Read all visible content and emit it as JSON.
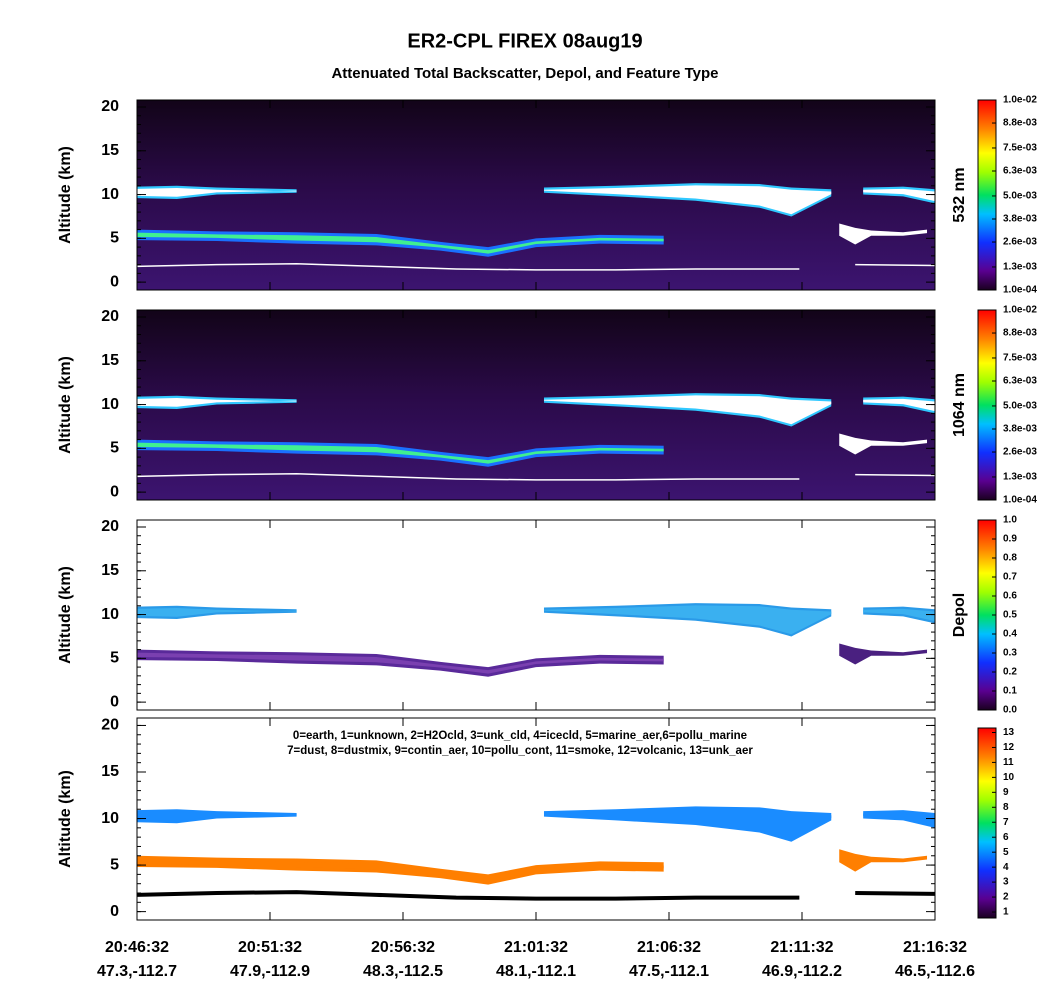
{
  "title": "ER2-CPL FIREX 08aug19",
  "subtitle": "Attenuated Total Backscatter, Depol, and Feature Type",
  "xtick_times": [
    "20:46:32",
    "20:51:32",
    "20:56:32",
    "21:01:32",
    "21:06:32",
    "21:11:32",
    "21:16:32"
  ],
  "xtick_coords": [
    "47.3,-112.7",
    "47.9,-112.9",
    "48.3,-112.5",
    "48.1,-112.1",
    "47.5,-112.1",
    "46.9,-112.2",
    "46.5,-112.6"
  ],
  "chart_data": [
    {
      "type": "backscatter",
      "ylabel": "Altitude (km)",
      "ylim": [
        -0.9,
        20.8
      ],
      "yticks": [
        0,
        5,
        10,
        15,
        20
      ],
      "colorbar_label": "532 nm",
      "clim": [
        0.0001,
        0.01
      ],
      "cticks": [
        {
          "value": 0.0001,
          "label": "1.0e-04"
        },
        {
          "value": 0.0013,
          "label": "1.3e-03"
        },
        {
          "value": 0.0026,
          "label": "2.6e-03"
        },
        {
          "value": 0.0038,
          "label": "3.8e-03"
        },
        {
          "value": 0.005,
          "label": "5.0e-03"
        },
        {
          "value": 0.0063,
          "label": "6.3e-03"
        },
        {
          "value": 0.0075,
          "label": "7.5e-03"
        },
        {
          "value": 0.0088,
          "label": "8.8e-03"
        },
        {
          "value": 0.01,
          "label": "1.0e-02"
        }
      ]
    },
    {
      "type": "backscatter",
      "ylabel": "Altitude (km)",
      "ylim": [
        -0.9,
        20.8
      ],
      "yticks": [
        0,
        5,
        10,
        15,
        20
      ],
      "colorbar_label": "1064 nm",
      "clim": [
        0.0001,
        0.01
      ],
      "cticks": [
        {
          "value": 0.0001,
          "label": "1.0e-04"
        },
        {
          "value": 0.0013,
          "label": "1.3e-03"
        },
        {
          "value": 0.0026,
          "label": "2.6e-03"
        },
        {
          "value": 0.0038,
          "label": "3.8e-03"
        },
        {
          "value": 0.005,
          "label": "5.0e-03"
        },
        {
          "value": 0.0063,
          "label": "6.3e-03"
        },
        {
          "value": 0.0075,
          "label": "7.5e-03"
        },
        {
          "value": 0.0088,
          "label": "8.8e-03"
        },
        {
          "value": 0.01,
          "label": "1.0e-02"
        }
      ]
    },
    {
      "type": "depol",
      "ylabel": "Altitude (km)",
      "ylim": [
        -0.9,
        20.8
      ],
      "yticks": [
        0,
        5,
        10,
        15,
        20
      ],
      "colorbar_label": "Depol",
      "clim": [
        0,
        1
      ],
      "cticks": [
        {
          "value": 0,
          "label": "0.0"
        },
        0.1,
        0.2,
        0.3,
        0.4,
        0.5,
        0.6,
        0.7,
        0.8,
        0.9,
        {
          "value": 1,
          "label": "1.0"
        }
      ]
    },
    {
      "type": "feature",
      "ylabel": "Altitude (km)",
      "ylim": [
        -0.9,
        20.8
      ],
      "yticks": [
        0,
        5,
        10,
        15,
        20
      ],
      "clim": [
        0.6,
        13.3
      ],
      "cticks": [
        1,
        2,
        3,
        4,
        5,
        6,
        7,
        8,
        9,
        10,
        11,
        12,
        13
      ],
      "legend": [
        "0=earth, 1=unknown, 2=H2Ocld, 3=unk_cld, 4=icecld, 5=marine_aer,6=pollu_marine",
        "7=dust, 8=dustmix, 9=contin_aer, 10=pollu_cont, 11=smoke, 12=volcanic, 13=unk_aer"
      ]
    }
  ]
}
